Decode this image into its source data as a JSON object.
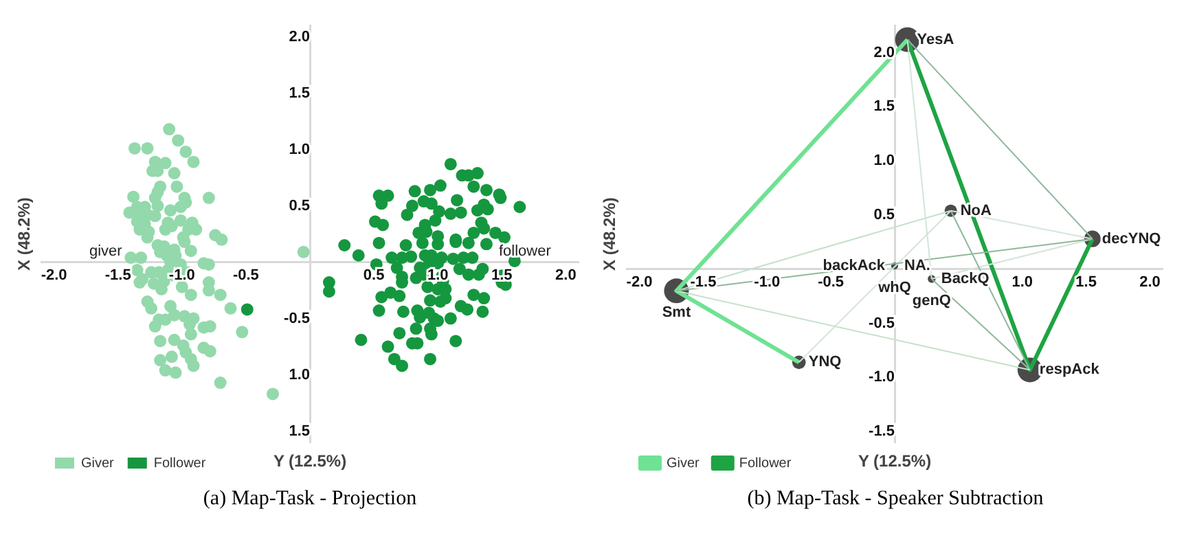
{
  "chart_data": [
    {
      "type": "scatter",
      "title": "(a) Map-Task - Projection",
      "xlabel": "Y (12.5%)",
      "ylabel": "X (48.2%)",
      "xlim": [
        -2.1,
        2.1
      ],
      "ylim": [
        -1.6,
        2.1
      ],
      "xticks": [
        {
          "value": -2,
          "label": "-2.0"
        },
        {
          "value": -1.5,
          "label": "-1.5"
        },
        {
          "value": -1,
          "label": "-1.0"
        },
        {
          "value": -0.5,
          "label": "-0.5"
        },
        {
          "value": 0.5,
          "label": "0.5"
        },
        {
          "value": 1,
          "label": "1.0"
        },
        {
          "value": 1.5,
          "label": "1.5"
        },
        {
          "value": 2,
          "label": "2.0"
        }
      ],
      "yticks": [
        {
          "value": 2,
          "label": "2.0"
        },
        {
          "value": 1.5,
          "label": "1.5"
        },
        {
          "value": 1,
          "label": "1.0"
        },
        {
          "value": 0.5,
          "label": "0.5"
        },
        {
          "value": -0.5,
          "label": "-0.5"
        },
        {
          "value": -1,
          "label": "1.0"
        },
        {
          "value": -1.5,
          "label": "1.5"
        }
      ],
      "grid": false,
      "legend": "bottom left",
      "marker": "circle",
      "annotations": [
        "giver",
        "follower"
      ],
      "series": [
        {
          "name": "Giver",
          "color": "#93d9ab",
          "x": [
            -1.1,
            -1.03,
            -1.37,
            -1.27,
            -0.97,
            -1.21,
            -1.13,
            -0.91,
            -1.23,
            -1.19,
            -1.06,
            -1.17,
            -1.04,
            -1.19,
            -1.38,
            -1.21,
            -0.98,
            -0.79,
            -1.35,
            -1.29,
            -1.19,
            -1.09,
            -1.01,
            -0.97,
            -1.41,
            -1.33,
            -1.27,
            -1.21,
            -1.01,
            -0.92,
            -1.35,
            -1.29,
            -1.11,
            -1.08,
            -0.89,
            -1.33,
            -1.26,
            -1.13,
            -0.95,
            -0.74,
            -0.69,
            -1.27,
            -0.99,
            -0.98,
            -1.19,
            -1.14,
            -1.06,
            -1.17,
            -0.93,
            -1.12,
            -1.05,
            -1.4,
            -1.32,
            -1.09,
            -1.01,
            -0.83,
            -0.79,
            -1.35,
            -1.24,
            -1.18,
            -1.11,
            -1.06,
            -0.96,
            -1.31,
            -1.33,
            -1.22,
            -1.14,
            -0.79,
            -1.16,
            -1.0,
            -0.79,
            -0.7,
            -0.93,
            -1.27,
            -1.24,
            -1.09,
            -0.62,
            -1.06,
            -0.98,
            -0.91,
            -1.18,
            -1.13,
            -1.21,
            -0.94,
            -0.83,
            -0.78,
            -0.53,
            -0.93,
            -1.06,
            -1.17,
            -0.99,
            -0.83,
            -0.78,
            -0.97,
            -1.08,
            -1.17,
            -0.93,
            -0.91,
            -1.13,
            -1.05,
            -0.7,
            -0.29,
            -0.05
          ],
          "values": [
            1.18,
            1.08,
            1.01,
            1.01,
            0.98,
            0.89,
            0.88,
            0.89,
            0.81,
            0.81,
            0.79,
            0.67,
            0.67,
            0.62,
            0.58,
            0.57,
            0.57,
            0.57,
            0.49,
            0.49,
            0.5,
            0.46,
            0.49,
            0.53,
            0.44,
            0.43,
            0.42,
            0.41,
            0.37,
            0.35,
            0.36,
            0.34,
            0.35,
            0.32,
            0.29,
            0.29,
            0.27,
            0.29,
            0.29,
            0.24,
            0.2,
            0.22,
            0.22,
            0.18,
            0.15,
            0.14,
            0.11,
            0.09,
            0.1,
            0.06,
            0.06,
            0.04,
            0.04,
            0.0,
            -0.02,
            -0.01,
            -0.02,
            -0.07,
            -0.09,
            -0.09,
            -0.07,
            -0.12,
            -0.09,
            -0.15,
            -0.18,
            -0.19,
            -0.17,
            -0.18,
            -0.24,
            -0.22,
            -0.25,
            -0.29,
            -0.29,
            -0.35,
            -0.41,
            -0.39,
            -0.41,
            -0.47,
            -0.48,
            -0.5,
            -0.51,
            -0.51,
            -0.57,
            -0.55,
            -0.58,
            -0.57,
            -0.62,
            -0.64,
            -0.69,
            -0.7,
            -0.74,
            -0.76,
            -0.79,
            -0.8,
            -0.84,
            -0.87,
            -0.86,
            -0.92,
            -0.96,
            -0.98,
            -1.07,
            -1.17,
            0.09
          ]
        },
        {
          "name": "Follower",
          "color": "#15973f",
          "x": [
            1.1,
            1.19,
            1.24,
            1.31,
            1.28,
            0.82,
            0.94,
            1.02,
            1.38,
            1.48,
            1.49,
            0.54,
            0.61,
            0.56,
            1.15,
            0.89,
            0.95,
            0.8,
            0.76,
            1.01,
            1.1,
            1.18,
            1.31,
            1.36,
            1.39,
            1.64,
            0.51,
            0.57,
            0.9,
            0.98,
            1.34,
            1.36,
            0.85,
            0.91,
            1.0,
            1.14,
            1.24,
            1.28,
            1.45,
            1.52,
            0.27,
            0.54,
            0.75,
            0.88,
            1.0,
            1.14,
            1.38,
            0.38,
            0.64,
            0.72,
            0.79,
            0.9,
            0.95,
            1.03,
            1.12,
            1.2,
            1.27,
            1.6,
            0.52,
            0.68,
            0.86,
            0.93,
            1.0,
            1.17,
            1.24,
            1.32,
            1.35,
            0.72,
            0.83,
            0.89,
            1.03,
            1.5,
            1.5,
            1.53,
            0.15,
            0.72,
            1.04,
            0.15,
            0.92,
            1.0,
            0.63,
            0.7,
            1.06,
            1.06,
            1.28,
            1.36,
            0.56,
            0.94,
            1.02,
            0.54,
            0.73,
            0.84,
            0.93,
            1.18,
            1.23,
            1.35,
            0.86,
            0.97,
            1.0,
            1.1,
            0.83,
            0.94,
            0.7,
            0.4,
            0.95,
            1.14,
            0.8,
            0.84,
            0.61,
            0.66,
            0.72,
            0.94,
            -0.49
          ],
          "values": [
            0.87,
            0.77,
            0.77,
            0.79,
            0.67,
            0.63,
            0.64,
            0.68,
            0.64,
            0.6,
            0.57,
            0.59,
            0.59,
            0.52,
            0.55,
            0.54,
            0.52,
            0.5,
            0.42,
            0.45,
            0.43,
            0.44,
            0.46,
            0.51,
            0.47,
            0.49,
            0.36,
            0.33,
            0.33,
            0.37,
            0.35,
            0.3,
            0.26,
            0.27,
            0.23,
            0.2,
            0.17,
            0.26,
            0.26,
            0.22,
            0.15,
            0.17,
            0.15,
            0.17,
            0.16,
            0.18,
            0.16,
            0.06,
            0.04,
            0.04,
            0.05,
            0.06,
            0.06,
            0.04,
            0.03,
            0.04,
            0.04,
            0.01,
            -0.02,
            -0.05,
            -0.05,
            -0.02,
            -0.01,
            -0.06,
            -0.11,
            -0.11,
            -0.06,
            -0.13,
            -0.14,
            -0.11,
            -0.13,
            -0.12,
            -0.18,
            -0.2,
            -0.18,
            -0.18,
            -0.17,
            -0.26,
            -0.22,
            -0.24,
            -0.27,
            -0.3,
            -0.24,
            -0.32,
            -0.29,
            -0.32,
            -0.31,
            -0.34,
            -0.35,
            -0.43,
            -0.44,
            -0.43,
            -0.45,
            -0.39,
            -0.42,
            -0.44,
            -0.49,
            -0.5,
            -0.52,
            -0.5,
            -0.59,
            -0.59,
            -0.63,
            -0.69,
            -0.64,
            -0.7,
            -0.72,
            -0.72,
            -0.75,
            -0.86,
            -0.92,
            -0.86,
            -0.42
          ]
        }
      ]
    },
    {
      "type": "bubble",
      "title": "(b) Map-Task - Speaker Subtraction",
      "xlabel": "Y (12.5%)",
      "ylabel": "X (48.2%)",
      "xlim": [
        -2.1,
        2.1
      ],
      "ylim": [
        -1.6,
        2.25
      ],
      "xticks": [
        {
          "value": -2,
          "label": "-2.0"
        },
        {
          "value": -1.5,
          "label": "-1.5"
        },
        {
          "value": -1,
          "label": "-1.0"
        },
        {
          "value": -0.5,
          "label": "-0.5"
        },
        {
          "value": 1,
          "label": "1.0"
        },
        {
          "value": 1.5,
          "label": "1.5"
        },
        {
          "value": 2,
          "label": "2.0"
        }
      ],
      "yticks": [
        {
          "value": 2,
          "label": "2.0"
        },
        {
          "value": 1.5,
          "label": "1.5"
        },
        {
          "value": 1,
          "label": "1.0"
        },
        {
          "value": 0.5,
          "label": "0.5"
        },
        {
          "value": -0.5,
          "label": "-0.5"
        },
        {
          "value": -1,
          "label": "-1.0"
        },
        {
          "value": -1.5,
          "label": "-1.5"
        }
      ],
      "grid": false,
      "legend": "bottom left",
      "annotations": [
        {
          "text": "YesA",
          "x": 0.1,
          "y": 2.12
        },
        {
          "text": "Smt",
          "x": -1.71,
          "y": -0.2
        },
        {
          "text": "respAck",
          "x": 1.06,
          "y": -0.93
        },
        {
          "text": "decYNQ",
          "x": 1.55,
          "y": 0.28
        },
        {
          "text": "NoA",
          "x": 0.44,
          "y": 0.54
        },
        {
          "text": "YNQ",
          "x": -0.75,
          "y": -0.86
        },
        {
          "text": "NA.",
          "x": 0,
          "y": 0.03
        },
        {
          "text": "whQ",
          "x": 0,
          "y": 0.03
        },
        {
          "text": "backAck",
          "x": 0,
          "y": 0.03
        },
        {
          "text": "BackQ",
          "x": 0.29,
          "y": -0.09
        },
        {
          "text": "genQ",
          "x": 0.29,
          "y": -0.09
        }
      ],
      "series": [
        {
          "type": "line",
          "color": "#8fb89a",
          "x": [
            0.1,
            1.55
          ],
          "values": [
            2.12,
            0.28
          ]
        },
        {
          "type": "line",
          "color": "#d3e6d8",
          "x": [
            0.1,
            0.29
          ],
          "values": [
            2.12,
            -0.09
          ]
        },
        {
          "type": "line",
          "color": "#8fb89a",
          "x": [
            -1.71,
            1.55
          ],
          "values": [
            -0.2,
            0.28
          ]
        },
        {
          "type": "line",
          "color": "#c3e2cb",
          "x": [
            -1.71,
            0.44
          ],
          "values": [
            -0.2,
            0.54
          ]
        },
        {
          "type": "line",
          "color": "#c3e2cb",
          "x": [
            -1.71,
            1.06
          ],
          "values": [
            -0.2,
            -0.93
          ]
        },
        {
          "type": "line",
          "color": "#d3e6d8",
          "x": [
            0.44,
            1.55
          ],
          "values": [
            0.54,
            0.28
          ]
        },
        {
          "type": "line",
          "color": "#8fb89a",
          "x": [
            0.44,
            1.06
          ],
          "values": [
            0.54,
            -0.93
          ]
        },
        {
          "type": "line",
          "color": "#8fb89a",
          "x": [
            0.29,
            1.06
          ],
          "values": [
            -0.09,
            -0.93
          ]
        },
        {
          "type": "line",
          "color": "#d3e6d8",
          "x": [
            -0.75,
            0.44
          ],
          "values": [
            -0.86,
            0.54
          ]
        },
        {
          "type": "line",
          "color": "#d3e6d8",
          "x": [
            0.29,
            1.55
          ],
          "values": [
            -0.09,
            0.28
          ]
        },
        {
          "type": "line",
          "name": "Giver",
          "color": "#6fe293",
          "x": [
            0.1,
            -1.71,
            -0.75
          ],
          "values": [
            2.12,
            -0.2,
            -0.86
          ]
        },
        {
          "type": "line",
          "name": "Follower",
          "color": "#1ea443",
          "x": [
            0.1,
            1.06,
            1.55
          ],
          "values": [
            2.12,
            -0.93,
            0.28
          ]
        },
        {
          "type": "bubble",
          "marker": "circle",
          "color": "#4a4a4a",
          "x": [
            0.1,
            -1.71,
            1.06,
            1.55,
            0.44,
            -0.75,
            0,
            0.29
          ],
          "values": [
            2.12,
            -0.2,
            -0.93,
            0.28,
            0.54,
            -0.86,
            0.03,
            -0.09
          ],
          "sizes": [
            1,
            1,
            1,
            0.45,
            0.25,
            0.3,
            0.08,
            0.1
          ]
        }
      ]
    }
  ]
}
